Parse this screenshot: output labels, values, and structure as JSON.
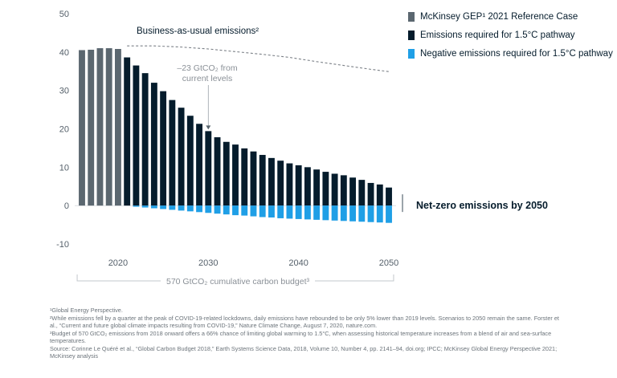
{
  "chart_data": {
    "type": "bar",
    "x": [
      2016,
      2017,
      2018,
      2019,
      2020,
      2021,
      2022,
      2023,
      2024,
      2025,
      2026,
      2027,
      2028,
      2029,
      2030,
      2031,
      2032,
      2033,
      2034,
      2035,
      2036,
      2037,
      2038,
      2039,
      2040,
      2041,
      2042,
      2043,
      2044,
      2045,
      2046,
      2047,
      2048,
      2049,
      2050
    ],
    "series": [
      {
        "name": "McKinsey GEP¹ 2021 Reference Case",
        "color": "#5b6770",
        "values": [
          40.5,
          40.6,
          41.0,
          41.0,
          40.8,
          null,
          null,
          null,
          null,
          null,
          null,
          null,
          null,
          null,
          null,
          null,
          null,
          null,
          null,
          null,
          null,
          null,
          null,
          null,
          null,
          null,
          null,
          null,
          null,
          null,
          null,
          null,
          null,
          null,
          null
        ]
      },
      {
        "name": "Emissions required for 1.5°C pathway",
        "color": "#051c2c",
        "values": [
          null,
          null,
          null,
          null,
          null,
          38.6,
          36.5,
          34.5,
          32.0,
          29.8,
          27.5,
          25.5,
          23.4,
          21.3,
          19.4,
          17.8,
          16.6,
          15.9,
          14.9,
          14.1,
          13.2,
          12.4,
          11.7,
          11.0,
          10.5,
          10.0,
          9.4,
          8.8,
          8.3,
          7.9,
          7.3,
          6.7,
          5.9,
          5.5,
          4.7
        ]
      },
      {
        "name": "Negative emissions required for 1.5°C pathway",
        "color": "#1f9fe6",
        "values": [
          null,
          null,
          null,
          null,
          null,
          null,
          -0.3,
          -0.5,
          -0.7,
          -0.9,
          -1.1,
          -1.3,
          -1.5,
          -1.7,
          -1.9,
          -2.1,
          -2.3,
          -2.5,
          -2.6,
          -2.8,
          -3.0,
          -3.1,
          -3.3,
          -3.4,
          -3.5,
          -3.6,
          -3.7,
          -3.8,
          -3.9,
          -4.0,
          -4.1,
          -4.2,
          -4.3,
          -4.4,
          -4.5
        ]
      },
      {
        "name": "Business-as-usual emissions²",
        "style": "dashed",
        "points": [
          [
            2021,
            41.6
          ],
          [
            2024,
            41.6
          ],
          [
            2027,
            41.3
          ],
          [
            2030,
            40.8
          ],
          [
            2033,
            40.1
          ],
          [
            2036,
            39.4
          ],
          [
            2039,
            38.6
          ],
          [
            2042,
            37.5
          ],
          [
            2045,
            36.5
          ],
          [
            2048,
            35.5
          ],
          [
            2050,
            34.9
          ]
        ]
      }
    ],
    "ylim": [
      -10,
      50
    ],
    "yticks": [
      -10,
      0,
      10,
      20,
      30,
      40,
      50
    ],
    "xticks": [
      2020,
      2030,
      2040,
      2050
    ],
    "xlim": [
      2015.2,
      2050.8
    ],
    "annotations": {
      "bau_label": "Business-as-usual emissions²",
      "callout_line1": "–23 GtCO₂ from",
      "callout_line2": "current levels",
      "callout_target": [
        2030,
        19.4
      ],
      "callout_from": [
        2030,
        34.0
      ],
      "netzero": "Net-zero emissions by 2050",
      "budget": "570 GtCO₂ cumulative carbon budget³"
    },
    "legend_position": "top-right",
    "grid": false
  },
  "legend": [
    {
      "label": "McKinsey GEP¹ 2021 Reference Case",
      "color": "#5b6770"
    },
    {
      "label": "Emissions required for 1.5°C pathway",
      "color": "#051c2c"
    },
    {
      "label": "Negative emissions required for 1.5°C pathway",
      "color": "#1f9fe6"
    }
  ],
  "footnotes": [
    "¹Global Energy Perspective.",
    "²While emissions fell by a quarter at the peak of COVID-19-related lockdowns, daily emissions have rebounded to be only 5% lower than 2019 levels. Scenarios to 2050 remain the same. Forster et al., “Current and future global climate impacts resulting from COVID-19,” Nature Climate Change, August 7, 2020, nature.com.",
    "³Budget of 570 GtCO₂ emissions from 2018 onward offers a 66% chance of limiting global warming to 1.5°C, when assessing historical temperature increases from a blend of air and sea-surface temperatures.",
    "Source: Corinne Le Quéré et al., “Global Carbon Budget 2018,” Earth Systems Science Data, 2018, Volume 10, Number 4, pp. 2141–94, doi.org; IPCC; McKinsey Global Energy Perspective 2021; McKinsey analysis"
  ]
}
